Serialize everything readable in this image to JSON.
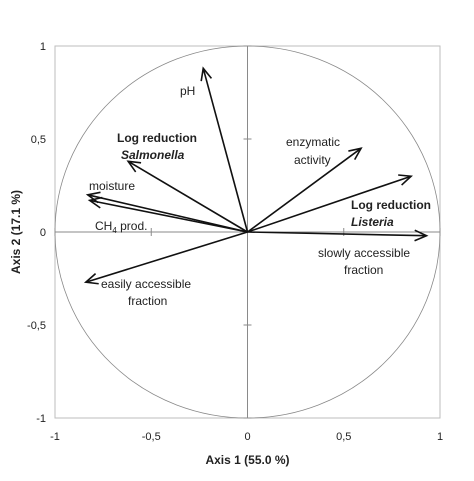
{
  "chart_data": {
    "type": "scatter",
    "subtype": "correlation-circle-biplot",
    "xlabel": "Axis 1 (55.0 %)",
    "ylabel": "Axis 2 (17.1 %)",
    "xlim": [
      -1,
      1
    ],
    "ylim": [
      -1,
      1
    ],
    "x_ticks": [
      "-1",
      "-0,5",
      "0",
      "0,5",
      "1"
    ],
    "y_ticks": [
      "-1",
      "-0,5",
      "0",
      "0,5",
      "1"
    ],
    "grid": false,
    "unit_circle": true,
    "vectors": [
      {
        "id": "ph",
        "x": -0.23,
        "y": 0.88,
        "label_lines": [
          "pH"
        ]
      },
      {
        "id": "salmonella",
        "x": -0.62,
        "y": 0.38,
        "label_lines": [
          "Log reduction",
          "Salmonella"
        ]
      },
      {
        "id": "moisture",
        "x": -0.83,
        "y": 0.2,
        "label_lines": [
          "moisture"
        ]
      },
      {
        "id": "ch4",
        "x": -0.82,
        "y": 0.17,
        "label_lines": [
          "CH",
          "4",
          " prod."
        ]
      },
      {
        "id": "easily",
        "x": -0.84,
        "y": -0.27,
        "label_lines": [
          "easily accessible",
          "fraction"
        ]
      },
      {
        "id": "enzymatic",
        "x": 0.59,
        "y": 0.45,
        "label_lines": [
          "enzymatic",
          "activity"
        ]
      },
      {
        "id": "listeria",
        "x": 0.85,
        "y": 0.3,
        "label_lines": [
          "Log reduction",
          "Listeria"
        ]
      },
      {
        "id": "slowly",
        "x": 0.93,
        "y": -0.02,
        "label_lines": [
          "slowly accessible",
          "fraction"
        ]
      }
    ]
  }
}
